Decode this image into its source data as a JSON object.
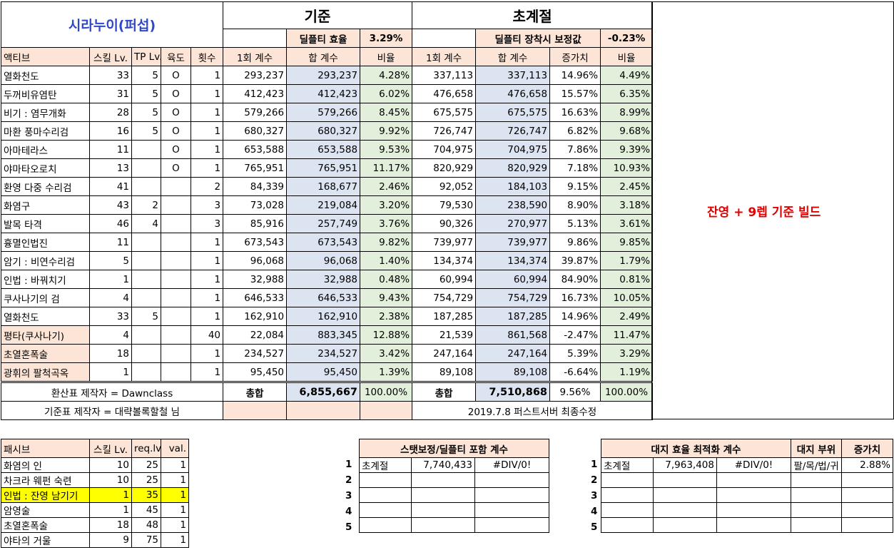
{
  "main": {
    "title": "시라누이(퍼섭)",
    "base_header": "기준",
    "chogye_header": "초계절",
    "dealft_eff_label": "딜플티 효율",
    "dealft_eff_value": "3.29%",
    "dealft_equip_label": "딜플티 장착시 보정값",
    "dealft_equip_value": "-0.23%",
    "col_headers": [
      "액티브",
      "스킬 Lv.",
      "TP Lv.",
      "육도",
      "횟수",
      "1회 계수",
      "합 계수",
      "비율",
      "1회 계수",
      "합 계수",
      "증가치",
      "비율"
    ],
    "rows": [
      {
        "name": "열화천도",
        "lv": "33",
        "tp": "5",
        "yuk": "O",
        "cnt": "1",
        "b1": "293,237",
        "bs": "293,237",
        "br": "4.28%",
        "c1": "337,113",
        "cs": "337,113",
        "inc": "14.96%",
        "cr": "4.49%",
        "hl": ""
      },
      {
        "name": "두꺼비유염탄",
        "lv": "31",
        "tp": "5",
        "yuk": "O",
        "cnt": "1",
        "b1": "412,423",
        "bs": "412,423",
        "br": "6.02%",
        "c1": "476,658",
        "cs": "476,658",
        "inc": "15.57%",
        "cr": "6.35%",
        "hl": ""
      },
      {
        "name": "비기 : 염무개화",
        "lv": "28",
        "tp": "5",
        "yuk": "O",
        "cnt": "1",
        "b1": "579,266",
        "bs": "579,266",
        "br": "8.45%",
        "c1": "675,575",
        "cs": "675,575",
        "inc": "16.63%",
        "cr": "8.99%",
        "hl": ""
      },
      {
        "name": "마환 풍마수리검",
        "lv": "16",
        "tp": "5",
        "yuk": "O",
        "cnt": "1",
        "b1": "680,327",
        "bs": "680,327",
        "br": "9.92%",
        "c1": "726,747",
        "cs": "726,747",
        "inc": "6.82%",
        "cr": "9.68%",
        "hl": ""
      },
      {
        "name": "아마테라스",
        "lv": "11",
        "tp": "",
        "yuk": "O",
        "cnt": "1",
        "b1": "653,588",
        "bs": "653,588",
        "br": "9.53%",
        "c1": "704,975",
        "cs": "704,975",
        "inc": "7.86%",
        "cr": "9.39%",
        "hl": ""
      },
      {
        "name": "야마타오로치",
        "lv": "13",
        "tp": "",
        "yuk": "O",
        "cnt": "1",
        "b1": "765,951",
        "bs": "765,951",
        "br": "11.17%",
        "c1": "820,929",
        "cs": "820,929",
        "inc": "7.18%",
        "cr": "10.93%",
        "hl": ""
      },
      {
        "name": "환영 다중 수리검",
        "lv": "41",
        "tp": "",
        "yuk": "",
        "cnt": "2",
        "b1": "84,339",
        "bs": "168,677",
        "br": "2.46%",
        "c1": "92,052",
        "cs": "184,103",
        "inc": "9.15%",
        "cr": "2.45%",
        "hl": ""
      },
      {
        "name": "화염구",
        "lv": "43",
        "tp": "2",
        "yuk": "",
        "cnt": "3",
        "b1": "73,028",
        "bs": "219,084",
        "br": "3.20%",
        "c1": "79,530",
        "cs": "238,590",
        "inc": "8.90%",
        "cr": "3.18%",
        "hl": ""
      },
      {
        "name": "발목 타격",
        "lv": "46",
        "tp": "4",
        "yuk": "",
        "cnt": "3",
        "b1": "85,916",
        "bs": "257,749",
        "br": "3.76%",
        "c1": "90,326",
        "cs": "270,977",
        "inc": "5.13%",
        "cr": "3.61%",
        "hl": ""
      },
      {
        "name": "흉멸인법진",
        "lv": "11",
        "tp": "",
        "yuk": "",
        "cnt": "1",
        "b1": "673,543",
        "bs": "673,543",
        "br": "9.82%",
        "c1": "739,977",
        "cs": "739,977",
        "inc": "9.86%",
        "cr": "9.85%",
        "hl": ""
      },
      {
        "name": "암기 : 비연수리검",
        "lv": "5",
        "tp": "",
        "yuk": "",
        "cnt": "1",
        "b1": "96,068",
        "bs": "96,068",
        "br": "1.40%",
        "c1": "134,374",
        "cs": "134,374",
        "inc": "39.87%",
        "cr": "1.79%",
        "hl": ""
      },
      {
        "name": "인법 : 바꿔치기",
        "lv": "1",
        "tp": "",
        "yuk": "",
        "cnt": "1",
        "b1": "32,988",
        "bs": "32,988",
        "br": "0.48%",
        "c1": "60,994",
        "cs": "60,994",
        "inc": "84.90%",
        "cr": "0.81%",
        "hl": ""
      },
      {
        "name": "쿠사나기의 검",
        "lv": "4",
        "tp": "",
        "yuk": "",
        "cnt": "1",
        "b1": "646,533",
        "bs": "646,533",
        "br": "9.43%",
        "c1": "754,729",
        "cs": "754,729",
        "inc": "16.73%",
        "cr": "10.05%",
        "hl": ""
      },
      {
        "name": "열화천도",
        "lv": "33",
        "tp": "5",
        "yuk": "",
        "cnt": "1",
        "b1": "162,910",
        "bs": "162,910",
        "br": "2.38%",
        "c1": "187,285",
        "cs": "187,285",
        "inc": "14.96%",
        "cr": "2.49%",
        "hl": ""
      },
      {
        "name": "평타(쿠사나기)",
        "lv": "4",
        "tp": "",
        "yuk": "",
        "cnt": "40",
        "b1": "22,084",
        "bs": "883,345",
        "br": "12.88%",
        "c1": "21,539",
        "cs": "861,568",
        "inc": "-2.47%",
        "cr": "11.47%",
        "hl": "peach"
      },
      {
        "name": "초열혼폭술",
        "lv": "18",
        "tp": "",
        "yuk": "",
        "cnt": "1",
        "b1": "234,527",
        "bs": "234,527",
        "br": "3.42%",
        "c1": "247,164",
        "cs": "247,164",
        "inc": "5.39%",
        "cr": "3.29%",
        "hl": "peach"
      },
      {
        "name": "광휘의 팔척곡옥",
        "lv": "1",
        "tp": "",
        "yuk": "",
        "cnt": "1",
        "b1": "95,450",
        "bs": "95,450",
        "br": "1.39%",
        "c1": "89,108",
        "cs": "89,108",
        "inc": "-6.64%",
        "cr": "1.19%",
        "hl": "peach"
      }
    ],
    "credit1": "환산표 제작자 = Dawnclass",
    "credit2": "기준표 제작자 = 대략볼록할철 님",
    "total_label_base": "총합",
    "total_base": "6,855,667",
    "total_base_ratio": "100.00%",
    "total_label_chogye": "총합",
    "total_chogye": "7,510,868",
    "total_inc": "9.56%",
    "total_chogye_ratio": "100.00%",
    "revision": "2019.7.8 퍼스트서버 최종수정",
    "side_note": "잔영 + 9렙 기준 빌드"
  },
  "passive": {
    "headers": [
      "패시브",
      "스킬 Lv.",
      "req.lv",
      "val."
    ],
    "rows": [
      {
        "name": "화염의 인",
        "lv": "10",
        "req": "25",
        "val": "1",
        "hl": ""
      },
      {
        "name": "차크라 웨펀 숙련",
        "lv": "10",
        "req": "25",
        "val": "1",
        "hl": ""
      },
      {
        "name": "인법 : 잔영 남기기",
        "lv": "1",
        "req": "35",
        "val": "1",
        "hl": "yel"
      },
      {
        "name": "암영술",
        "lv": "1",
        "req": "45",
        "val": "1",
        "hl": ""
      },
      {
        "name": "초열혼폭술",
        "lv": "18",
        "req": "48",
        "val": "1",
        "hl": ""
      },
      {
        "name": "야타의 거울",
        "lv": "9",
        "req": "75",
        "val": "1",
        "hl": ""
      }
    ]
  },
  "stat_table": {
    "header": "스탯보정/딜플티 포함 계수",
    "row_numbers": [
      "1",
      "2",
      "3",
      "4",
      "5"
    ],
    "rows": [
      [
        "초계절",
        "7,740,433",
        "#DIV/0!"
      ],
      [
        "",
        "",
        ""
      ],
      [
        "",
        "",
        ""
      ],
      [
        "",
        "",
        ""
      ],
      [
        "",
        "",
        ""
      ]
    ]
  },
  "daeji_table": {
    "header": "대지 효율 최적화 계수",
    "part_header": "대지 부위",
    "inc_header": "증가치",
    "row_numbers": [
      "1",
      "2",
      "3",
      "4",
      "5"
    ],
    "rows": [
      [
        "초계절",
        "7,963,408",
        "#DIV/0!",
        "팔/목/법/귀",
        "2.88%"
      ],
      [
        "",
        "",
        "",
        "",
        ""
      ],
      [
        "",
        "",
        "",
        "",
        ""
      ],
      [
        "",
        "",
        "",
        "",
        ""
      ],
      [
        "",
        "",
        "",
        "",
        ""
      ]
    ]
  }
}
